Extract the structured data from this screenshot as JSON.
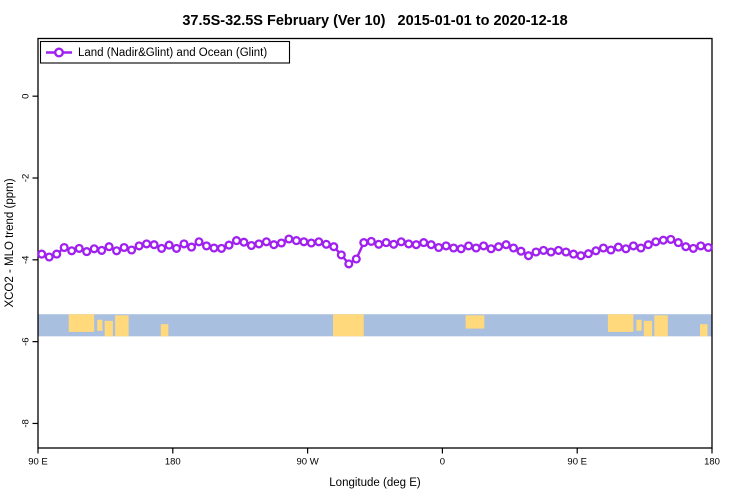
{
  "title": "37.5S-32.5S February (Ver 10)   2015-01-01 to 2020-12-18",
  "legend": {
    "label": "Land (Nadir&Glint) and Ocean (Glint)",
    "position": "top-left"
  },
  "colors": {
    "series": "#A020F0",
    "ocean": "#A9BFE0",
    "land": "#FFD97C",
    "axis": "#000000",
    "background": "#FFFFFF"
  },
  "chart_data": {
    "type": "line",
    "title": "37.5S-32.5S February (Ver 10)  2015-01-01 to 2020-12-18",
    "xlabel": "Longitude (deg E)",
    "ylabel": "XCO2 - MLO trend (ppm)",
    "xlim": [
      90,
      540
    ],
    "ylim": [
      -8.6,
      1.41
    ],
    "grid": false,
    "xticks": [
      {
        "pos": 90,
        "label": "90 E"
      },
      {
        "pos": 180,
        "label": "180"
      },
      {
        "pos": 270,
        "label": "90 W"
      },
      {
        "pos": 360,
        "label": "0"
      },
      {
        "pos": 450,
        "label": "90 E"
      },
      {
        "pos": 540,
        "label": "180"
      }
    ],
    "yticks": [
      {
        "pos": 0,
        "label": "0"
      },
      {
        "pos": -2,
        "label": "-2"
      },
      {
        "pos": -4,
        "label": "-4"
      },
      {
        "pos": -6,
        "label": "-6"
      },
      {
        "pos": -8,
        "label": "-8"
      }
    ],
    "series": [
      {
        "name": "Land (Nadir&Glint) and Ocean (Glint)",
        "color": "#A020F0",
        "marker": "open-circle",
        "x": [
          92.5,
          97.5,
          102.5,
          107.5,
          112.5,
          117.5,
          122.5,
          127.5,
          132.5,
          137.5,
          142.5,
          147.5,
          152.5,
          157.5,
          162.5,
          167.5,
          172.5,
          177.5,
          182.5,
          187.5,
          192.5,
          197.5,
          202.5,
          207.5,
          212.5,
          217.5,
          222.5,
          227.5,
          232.5,
          237.5,
          242.5,
          247.5,
          252.5,
          257.5,
          262.5,
          267.5,
          272.5,
          277.5,
          282.5,
          287.5,
          292.5,
          297.5,
          302.5,
          307.5,
          312.5,
          317.5,
          322.5,
          327.5,
          332.5,
          337.5,
          342.5,
          347.5,
          352.5,
          357.5,
          362.5,
          367.5,
          372.5,
          377.5,
          382.5,
          387.5,
          392.5,
          397.5,
          402.5,
          407.5,
          412.5,
          417.5,
          422.5,
          427.5,
          432.5,
          437.5,
          442.5,
          447.5,
          452.5,
          457.5,
          462.5,
          467.5,
          472.5,
          477.5,
          482.5,
          487.5,
          492.5,
          497.5,
          502.5,
          507.5,
          512.5,
          517.5,
          522.5,
          527.5,
          532.5,
          537.5
        ],
        "values": [
          -3.86,
          -3.93,
          -3.86,
          -3.7,
          -3.78,
          -3.72,
          -3.8,
          -3.73,
          -3.77,
          -3.68,
          -3.78,
          -3.7,
          -3.76,
          -3.66,
          -3.61,
          -3.63,
          -3.72,
          -3.64,
          -3.72,
          -3.61,
          -3.69,
          -3.56,
          -3.66,
          -3.71,
          -3.72,
          -3.64,
          -3.53,
          -3.57,
          -3.65,
          -3.61,
          -3.56,
          -3.63,
          -3.59,
          -3.49,
          -3.53,
          -3.56,
          -3.59,
          -3.56,
          -3.62,
          -3.68,
          -3.88,
          -4.1,
          -3.98,
          -3.58,
          -3.55,
          -3.62,
          -3.58,
          -3.62,
          -3.56,
          -3.61,
          -3.63,
          -3.58,
          -3.63,
          -3.7,
          -3.66,
          -3.71,
          -3.73,
          -3.66,
          -3.71,
          -3.66,
          -3.73,
          -3.68,
          -3.63,
          -3.71,
          -3.79,
          -3.9,
          -3.81,
          -3.77,
          -3.81,
          -3.77,
          -3.81,
          -3.86,
          -3.9,
          -3.85,
          -3.78,
          -3.71,
          -3.76,
          -3.69,
          -3.73,
          -3.66,
          -3.71,
          -3.63,
          -3.56,
          -3.52,
          -3.5,
          -3.58,
          -3.68,
          -3.72,
          -3.66,
          -3.7
        ]
      }
    ],
    "map_band": {
      "description": "land-ocean strip for latitude band 37.5S-32.5S",
      "value_top": -5.33,
      "value_bottom": -5.87,
      "ocean_color": "#A9BFE0",
      "land_color": "#FFD97C",
      "land_patches": [
        {
          "name": "australia-west",
          "from": 110.5,
          "to": 127.5,
          "inset_top": 0,
          "inset_bottom": 0.2
        },
        {
          "name": "australia-bight",
          "from": 129.5,
          "to": 133.0,
          "inset_top": 0.25,
          "inset_bottom": 0.25
        },
        {
          "name": "australia-south",
          "from": 134.5,
          "to": 140.0,
          "inset_top": 0.3,
          "inset_bottom": 0
        },
        {
          "name": "australia-east",
          "from": 141.5,
          "to": 150.5,
          "inset_top": 0.05,
          "inset_bottom": 0
        },
        {
          "name": "new-zealand",
          "from": 172.0,
          "to": 177.0,
          "inset_top": 0.45,
          "inset_bottom": 0
        },
        {
          "name": "south-america",
          "from": 287.0,
          "to": 307.5,
          "inset_top": 0,
          "inset_bottom": 0
        },
        {
          "name": "south-africa",
          "from": 375.5,
          "to": 388.0,
          "inset_top": 0.05,
          "inset_bottom": 0.35
        },
        {
          "name": "australia-west-wrap",
          "from": 470.5,
          "to": 487.5,
          "inset_top": 0,
          "inset_bottom": 0.2
        },
        {
          "name": "australia-bight-wrap",
          "from": 489.5,
          "to": 493.0,
          "inset_top": 0.25,
          "inset_bottom": 0.25
        },
        {
          "name": "australia-south-wrap",
          "from": 494.5,
          "to": 500.0,
          "inset_top": 0.3,
          "inset_bottom": 0
        },
        {
          "name": "australia-east-wrap",
          "from": 501.5,
          "to": 510.5,
          "inset_top": 0.05,
          "inset_bottom": 0
        },
        {
          "name": "new-zealand-wrap",
          "from": 532.0,
          "to": 537.0,
          "inset_top": 0.45,
          "inset_bottom": 0
        }
      ]
    }
  }
}
